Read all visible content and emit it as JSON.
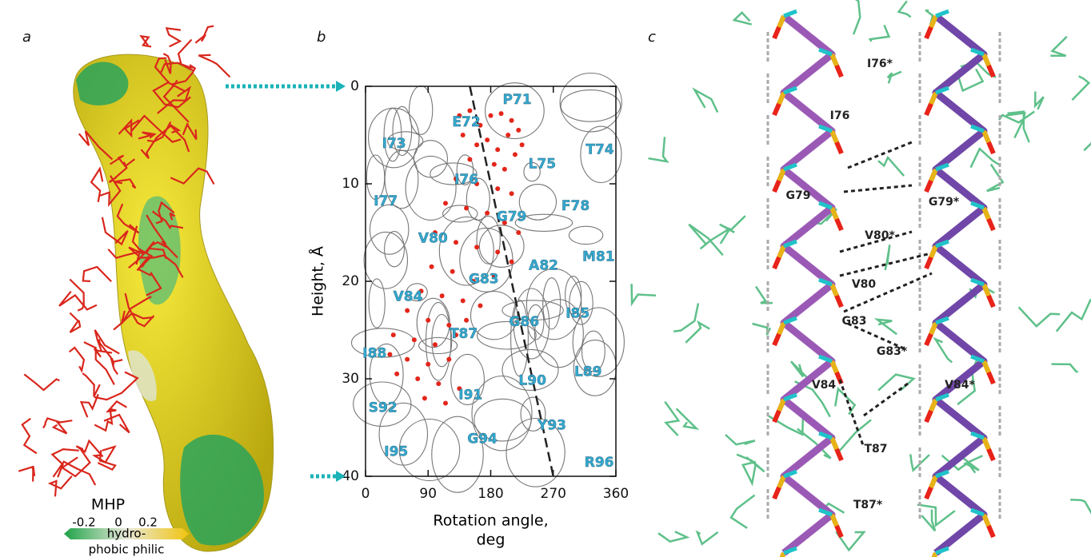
{
  "panel_labels": [
    "a",
    "b",
    "c"
  ],
  "panel_a": {
    "legend_title": "MHP",
    "legend_ticks": [
      "-0.2",
      "0",
      "0.2"
    ],
    "legend_labels": [
      "hydro-",
      "phobic philic"
    ]
  },
  "panel_c": {
    "labels": [
      "I76*",
      "I76",
      "G79",
      "G79*",
      "V80*",
      "V80",
      "G83",
      "G83*",
      "V84",
      "V84*",
      "T87",
      "T87*"
    ]
  },
  "chart_data": {
    "type": "scatter",
    "ylabel": "Height, Å",
    "xlabel": [
      "Rotation angle,",
      "deg"
    ],
    "xlim": [
      0,
      360
    ],
    "xticks": [
      0,
      90,
      180,
      270,
      360
    ],
    "ylim": [
      40,
      0
    ],
    "yticks": [
      0,
      10,
      20,
      30,
      40
    ],
    "series": [
      {
        "color": "#e3261b",
        "x": [
          135,
          150,
          165,
          180,
          195,
          210,
          220,
          140,
          160,
          175,
          190,
          205,
          215,
          225,
          150,
          185,
          200,
          130,
          160,
          190,
          210,
          115,
          145,
          175,
          200,
          220,
          100,
          130,
          160,
          190,
          210,
          95,
          125,
          155,
          185,
          80,
          110,
          140,
          165,
          60,
          90,
          120,
          145,
          40,
          70,
          100,
          130,
          35,
          60,
          90,
          120,
          45,
          75,
          105,
          135,
          85,
          115
        ],
        "y": [
          3,
          2.5,
          4,
          3,
          2.8,
          3.5,
          4.5,
          5,
          6,
          5.5,
          6.5,
          5,
          7,
          6,
          7.5,
          8,
          8.5,
          9.5,
          10,
          10.5,
          11,
          12,
          12.5,
          13,
          14,
          15,
          15,
          16,
          16.5,
          17,
          18,
          18.5,
          19,
          20,
          19.5,
          21,
          21.5,
          22,
          22.5,
          23,
          24,
          24.5,
          24,
          25.5,
          26,
          26.5,
          25.5,
          27.5,
          28,
          28.5,
          28,
          29.5,
          30,
          30.5,
          31,
          32,
          32.5
        ]
      }
    ],
    "trend_line": {
      "x": [
        150,
        270
      ],
      "y": [
        0,
        40
      ]
    },
    "residues": [
      {
        "label": "P71",
        "x": 218,
        "y": 1.4
      },
      {
        "label": "E72",
        "x": 145,
        "y": 3.7
      },
      {
        "label": "I73",
        "x": 41,
        "y": 5.9
      },
      {
        "label": "T74",
        "x": 337,
        "y": 6.5
      },
      {
        "label": "L75",
        "x": 254,
        "y": 8
      },
      {
        "label": "I76",
        "x": 145,
        "y": 9.6
      },
      {
        "label": "I77",
        "x": 29,
        "y": 11.8
      },
      {
        "label": "F78",
        "x": 302,
        "y": 12.3
      },
      {
        "label": "G79",
        "x": 210,
        "y": 13.4
      },
      {
        "label": "V80",
        "x": 97,
        "y": 15.6
      },
      {
        "label": "M81",
        "x": 335,
        "y": 17.5
      },
      {
        "label": "A82",
        "x": 256,
        "y": 18.4
      },
      {
        "label": "G83",
        "x": 170,
        "y": 19.8
      },
      {
        "label": "V84",
        "x": 61,
        "y": 21.6
      },
      {
        "label": "I85",
        "x": 305,
        "y": 23.3
      },
      {
        "label": "G86",
        "x": 228,
        "y": 24.2
      },
      {
        "label": "T87",
        "x": 141,
        "y": 25.4
      },
      {
        "label": "I88",
        "x": 13,
        "y": 27.4
      },
      {
        "label": "L89",
        "x": 320,
        "y": 29.3
      },
      {
        "label": "L90",
        "x": 240,
        "y": 30.2
      },
      {
        "label": "I91",
        "x": 151,
        "y": 31.7
      },
      {
        "label": "S92",
        "x": 25,
        "y": 33
      },
      {
        "label": "Y93",
        "x": 268,
        "y": 34.8
      },
      {
        "label": "G94",
        "x": 168,
        "y": 36.2
      },
      {
        "label": "I95",
        "x": 44,
        "y": 37.5
      },
      {
        "label": "R96",
        "x": 336,
        "y": 38.6
      }
    ]
  }
}
